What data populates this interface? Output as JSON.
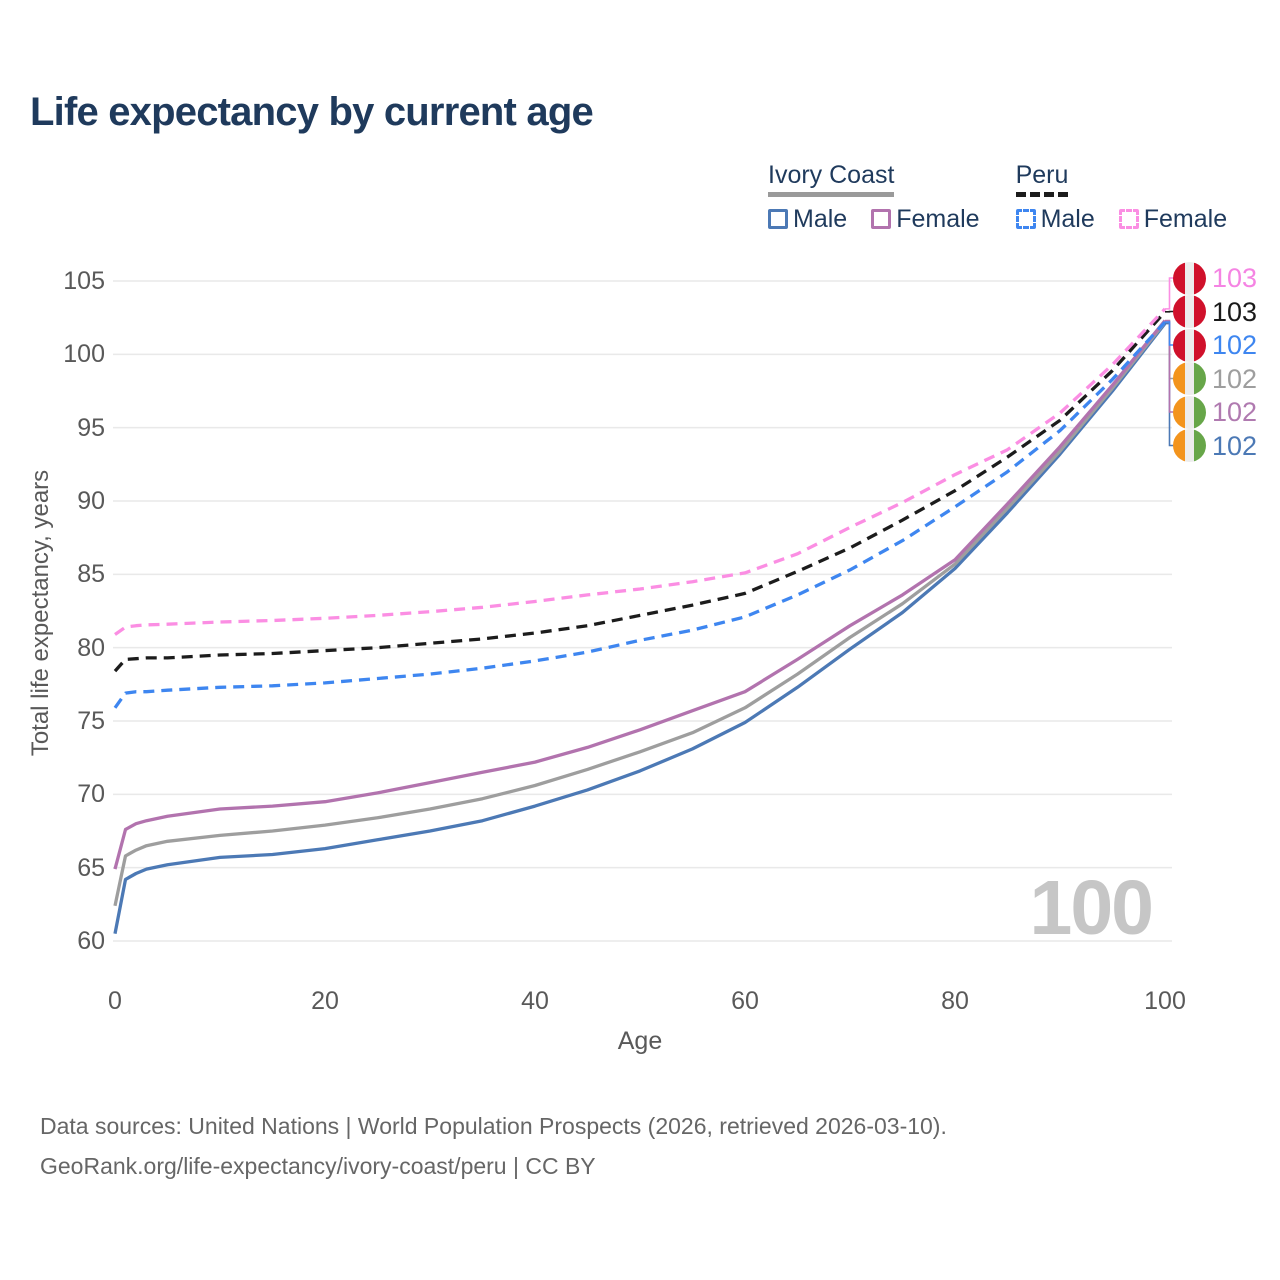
{
  "title": "Life expectancy by current age",
  "legend": {
    "groups": [
      {
        "title": "Ivory Coast",
        "line_style": "solid",
        "line_color": "#9a9a9a",
        "items": [
          {
            "label": "Male",
            "swatch_color": "#4c79b5",
            "dashed": false
          },
          {
            "label": "Female",
            "swatch_color": "#b273ae",
            "dashed": false
          }
        ]
      },
      {
        "title": "Peru",
        "line_style": "dashed",
        "line_color": "#1c1c1c",
        "items": [
          {
            "label": "Male",
            "swatch_color": "#3e86f0",
            "dashed": true
          },
          {
            "label": "Female",
            "swatch_color": "#fb8ee3",
            "dashed": true
          }
        ]
      }
    ]
  },
  "chart_data": {
    "type": "line",
    "title": "Life expectancy by current age",
    "xlabel": "Age",
    "ylabel": "Total life expectancy, years",
    "xlim": [
      0,
      100
    ],
    "ylim": [
      60,
      105
    ],
    "xticks": [
      0,
      20,
      40,
      60,
      80,
      100
    ],
    "yticks": [
      60,
      65,
      70,
      75,
      80,
      85,
      90,
      95,
      100,
      105
    ],
    "grid": "horizontal-only",
    "legend_position": "top-right",
    "x": [
      0,
      1,
      2,
      3,
      5,
      10,
      15,
      20,
      25,
      30,
      35,
      40,
      45,
      50,
      55,
      60,
      65,
      70,
      75,
      80,
      85,
      90,
      95,
      100
    ],
    "series": [
      {
        "name": "Ivory Coast Male",
        "color": "#4c79b5",
        "dash": false,
        "flag": "ivory-coast",
        "end_label": "102",
        "label_row": 5,
        "values": [
          60.5,
          64.2,
          64.6,
          64.9,
          65.2,
          65.7,
          65.9,
          66.3,
          66.9,
          67.5,
          68.2,
          69.2,
          70.3,
          71.6,
          73.1,
          74.9,
          77.3,
          79.9,
          82.4,
          85.4,
          89.2,
          93.2,
          97.5,
          102.1
        ]
      },
      {
        "name": "Ivory Coast Both sexes",
        "color": "#9e9e9e",
        "dash": false,
        "flag": "ivory-coast",
        "end_label": "102",
        "label_row": 3,
        "values": [
          62.4,
          65.8,
          66.2,
          66.5,
          66.8,
          67.2,
          67.5,
          67.9,
          68.4,
          69.0,
          69.7,
          70.6,
          71.7,
          72.9,
          74.2,
          75.9,
          78.2,
          80.7,
          83.0,
          85.7,
          89.5,
          93.4,
          97.7,
          102.2
        ]
      },
      {
        "name": "Ivory Coast Female",
        "color": "#b273ae",
        "dash": false,
        "flag": "ivory-coast",
        "end_label": "102",
        "label_row": 4,
        "values": [
          64.9,
          67.6,
          68.0,
          68.2,
          68.5,
          69.0,
          69.2,
          69.5,
          70.1,
          70.8,
          71.5,
          72.2,
          73.2,
          74.4,
          75.7,
          77.0,
          79.2,
          81.5,
          83.6,
          86.0,
          89.8,
          93.7,
          97.9,
          102.3
        ]
      },
      {
        "name": "Peru Male",
        "color": "#3e86f0",
        "dash": true,
        "flag": "peru",
        "end_label": "102",
        "label_row": 2,
        "values": [
          75.9,
          76.9,
          77.0,
          77.0,
          77.1,
          77.3,
          77.4,
          77.6,
          77.9,
          78.2,
          78.6,
          79.1,
          79.7,
          80.5,
          81.2,
          82.1,
          83.6,
          85.3,
          87.3,
          89.6,
          92.0,
          94.8,
          98.3,
          102.2
        ]
      },
      {
        "name": "Peru Both sexes",
        "color": "#1c1c1c",
        "dash": true,
        "flag": "peru",
        "end_label": "103",
        "label_row": 1,
        "values": [
          78.4,
          79.2,
          79.25,
          79.3,
          79.3,
          79.5,
          79.6,
          79.8,
          80.0,
          80.3,
          80.6,
          81.0,
          81.5,
          82.2,
          82.9,
          83.7,
          85.2,
          86.8,
          88.7,
          90.7,
          93.0,
          95.5,
          98.9,
          102.9
        ]
      },
      {
        "name": "Peru Female",
        "color": "#fb8ee3",
        "dash": true,
        "flag": "peru",
        "end_label": "103",
        "label_row": 0,
        "values": [
          80.9,
          81.4,
          81.5,
          81.55,
          81.6,
          81.75,
          81.85,
          82.0,
          82.2,
          82.45,
          82.75,
          83.15,
          83.6,
          84.0,
          84.5,
          85.1,
          86.4,
          88.2,
          89.9,
          91.8,
          93.5,
          96.0,
          99.3,
          103.1
        ]
      }
    ]
  },
  "end_labels": [
    {
      "value": "103",
      "color": "#f584e3",
      "flag": "peru"
    },
    {
      "value": "103",
      "color": "#1a1a1a",
      "flag": "peru"
    },
    {
      "value": "102",
      "color": "#3e86f0",
      "flag": "peru"
    },
    {
      "value": "102",
      "color": "#9e9e9e",
      "flag": "ivory-coast"
    },
    {
      "value": "102",
      "color": "#b07ab0",
      "flag": "ivory-coast"
    },
    {
      "value": "102",
      "color": "#4c79b5",
      "flag": "ivory-coast"
    }
  ],
  "flags": {
    "peru": [
      "#d0112b",
      "#ededed",
      "#d0112b"
    ],
    "ivory-coast": [
      "#f3941d",
      "#ededed",
      "#67a649"
    ]
  },
  "hover_age_indicator": "100",
  "footer": {
    "line1": "Data sources: United Nations | World Population Prospects (2026, retrieved 2026-03-10).",
    "line2": "GeoRank.org/life-expectancy/ivory-coast/peru | CC BY"
  }
}
